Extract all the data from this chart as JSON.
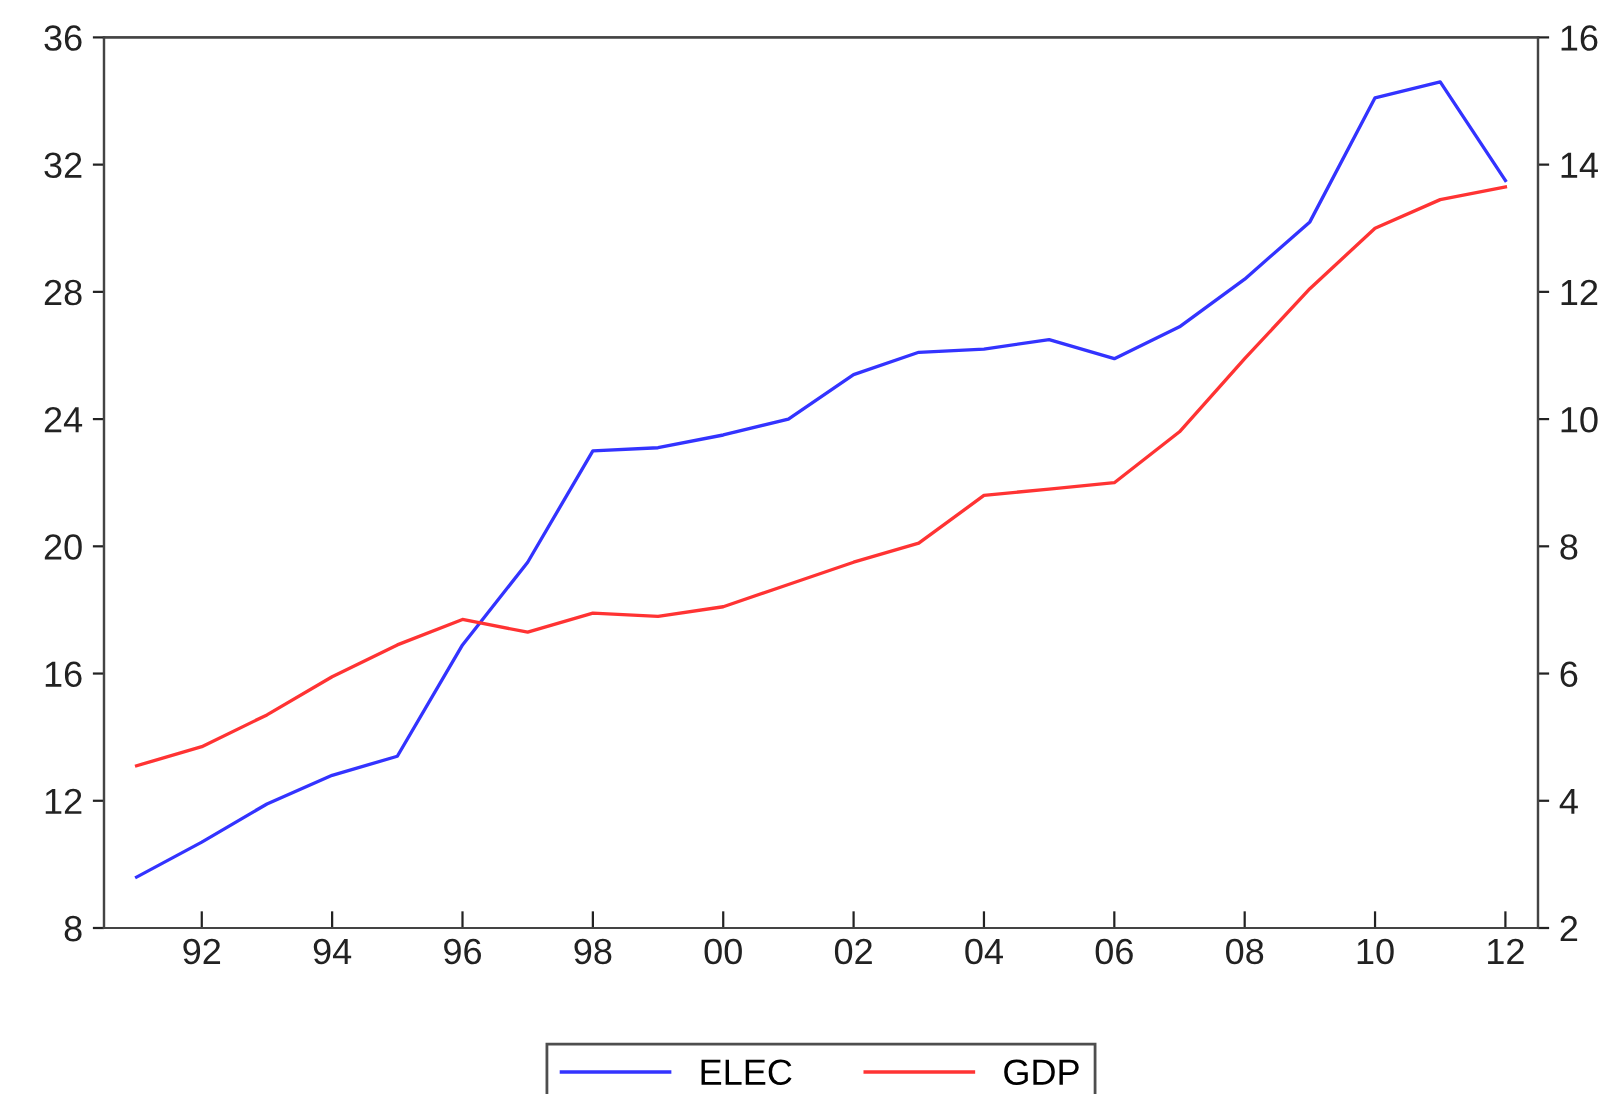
{
  "chart_data": {
    "type": "line",
    "x": [
      1991,
      1992,
      1993,
      1994,
      1995,
      1996,
      1997,
      1998,
      1999,
      2000,
      2001,
      2002,
      2003,
      2004,
      2005,
      2006,
      2007,
      2008,
      2009,
      2010,
      2011,
      2012
    ],
    "series": [
      {
        "name": "ELEC",
        "color": "#3333ff",
        "values": [
          9.6,
          10.7,
          11.9,
          12.8,
          13.4,
          16.9,
          19.5,
          23.0,
          23.1,
          23.5,
          24.0,
          25.4,
          26.1,
          26.2,
          26.5,
          25.9,
          26.9,
          28.4,
          30.2,
          34.1,
          34.6,
          31.5
        ]
      },
      {
        "name": "GDP",
        "color": "#ff3333",
        "axis": "y2",
        "values": [
          4.55,
          4.85,
          5.35,
          5.95,
          6.45,
          6.85,
          6.65,
          6.95,
          6.9,
          7.05,
          7.4,
          7.75,
          8.05,
          8.8,
          8.9,
          9.0,
          9.8,
          10.95,
          12.05,
          13.0,
          13.45,
          13.65
        ]
      }
    ],
    "xlim": [
      1990.5,
      2012.5
    ],
    "xticks": [
      {
        "value": 1992,
        "label": "92"
      },
      {
        "value": 1994,
        "label": "94"
      },
      {
        "value": 1996,
        "label": "96"
      },
      {
        "value": 1998,
        "label": "98"
      },
      {
        "value": 2000,
        "label": "00"
      },
      {
        "value": 2002,
        "label": "02"
      },
      {
        "value": 2004,
        "label": "04"
      },
      {
        "value": 2006,
        "label": "06"
      },
      {
        "value": 2008,
        "label": "08"
      },
      {
        "value": 2010,
        "label": "10"
      },
      {
        "value": 2012,
        "label": "12"
      }
    ],
    "ylim": [
      8,
      36
    ],
    "yticks": [
      8,
      12,
      16,
      20,
      24,
      28,
      32,
      36
    ],
    "y2lim": [
      2,
      16
    ],
    "y2ticks": [
      2,
      4,
      6,
      8,
      10,
      12,
      14,
      16
    ],
    "grid": false,
    "legend": "bottom",
    "line_style": "solid",
    "marker": "none"
  }
}
